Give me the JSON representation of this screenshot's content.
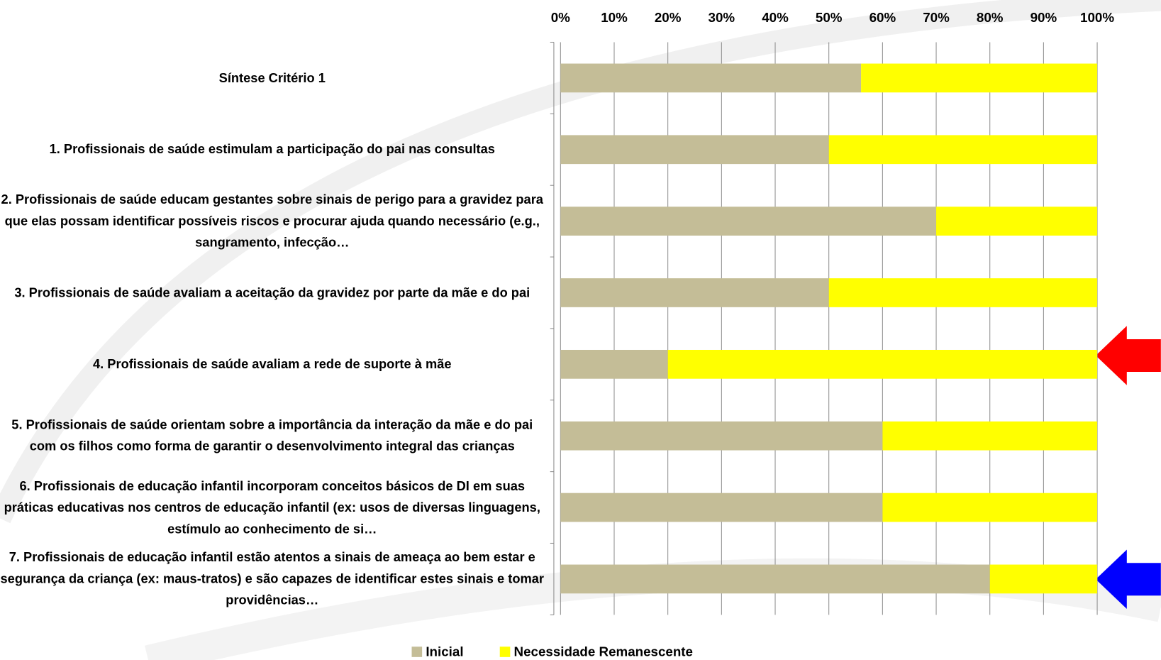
{
  "chart_data": {
    "type": "stacked_bar_horizontal",
    "categories": [
      "Síntese Critério 1",
      "1. Profissionais de saúde estimulam a participação do pai nas consultas",
      "2. Profissionais de saúde educam gestantes sobre sinais de perigo para a gravidez para que elas possam identificar possíveis riscos e procurar ajuda quando necessário (e.g., sangramento, infecção…",
      "3. Profissionais de saúde avaliam a aceitação da gravidez por parte da mãe e do pai",
      "4. Profissionais de saúde avaliam a rede de suporte à mãe",
      "5. Profissionais de saúde orientam sobre a importância da interação da mãe e do pai com os filhos como forma de garantir o desenvolvimento integral das crianças",
      "6. Profissionais de educação infantil incorporam conceitos básicos de DI em suas práticas educativas nos centros de educação infantil (ex: usos de diversas linguagens, estímulo ao conhecimento de si…",
      "7. Profissionais de educação infantil estão atentos a sinais de ameaça ao bem estar e segurança da criança (ex: maus-tratos) e são capazes de identificar estes sinais e tomar providências…"
    ],
    "series": [
      {
        "name": "Inicial",
        "color": "#c4bd97",
        "values": [
          56,
          50,
          70,
          50,
          20,
          60,
          60,
          80
        ]
      },
      {
        "name": "Necessidade Remanescente",
        "color": "#ffff00",
        "values": [
          44,
          50,
          30,
          50,
          80,
          40,
          40,
          20
        ]
      }
    ],
    "xlim": [
      0,
      100
    ],
    "xticks": [
      {
        "value": 0,
        "label": "0%"
      },
      {
        "value": 10,
        "label": "10%"
      },
      {
        "value": 20,
        "label": "20%"
      },
      {
        "value": 30,
        "label": "30%"
      },
      {
        "value": 40,
        "label": "40%"
      },
      {
        "value": 50,
        "label": "50%"
      },
      {
        "value": 60,
        "label": "60%"
      },
      {
        "value": 70,
        "label": "70%"
      },
      {
        "value": 80,
        "label": "80%"
      },
      {
        "value": 90,
        "label": "90%"
      },
      {
        "value": 100,
        "label": "100%"
      }
    ],
    "grid": true,
    "legend": "bottom"
  }
}
